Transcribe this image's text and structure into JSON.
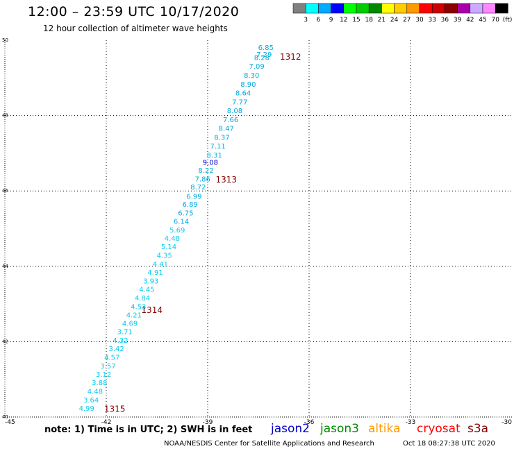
{
  "header": {
    "title": "12:00 – 23:59 UTC 10/17/2020",
    "subtitle": "12 hour collection of altimeter wave heights"
  },
  "legend": {
    "labels": [
      "3",
      "6",
      "9",
      "12",
      "15",
      "18",
      "21",
      "24",
      "27",
      "30",
      "33",
      "36",
      "39",
      "42",
      "45",
      "70"
    ],
    "unit": "(ft)",
    "colors": [
      "#808080",
      "#00ffff",
      "#00aaff",
      "#0000ff",
      "#00ff00",
      "#00cc00",
      "#008800",
      "#ffff00",
      "#ffcc00",
      "#ff9900",
      "#ff0000",
      "#cc0000",
      "#880000",
      "#aa00aa",
      "#ccaaff",
      "#ff88ff",
      "#000000"
    ]
  },
  "footer": {
    "note": "note: 1) Time is in UTC; 2) SWH is in feet",
    "missions": [
      {
        "name": "jason2",
        "color": "#0000cc"
      },
      {
        "name": "jason3",
        "color": "#008800"
      },
      {
        "name": "altika",
        "color": "#ff9900"
      },
      {
        "name": "cryosat",
        "color": "#ff0000"
      },
      {
        "name": "s3a",
        "color": "#880000"
      }
    ],
    "credit": "NOAA/NESDIS Center for Satellite Applications and Research",
    "timestamp": "Oct 18 08:27:38 UTC 2020"
  },
  "chart_data": {
    "type": "scatter",
    "xlim": [
      -45,
      -30
    ],
    "ylim": [
      40,
      50
    ],
    "x_ticks": [
      {
        "value": -45,
        "label": "-45"
      },
      {
        "value": -42,
        "label": "-42"
      },
      {
        "value": -39,
        "label": "-39"
      },
      {
        "value": -36,
        "label": "-36"
      },
      {
        "value": -33,
        "label": "-33"
      },
      {
        "value": -30,
        "label": "-30"
      }
    ],
    "y_ticks": [
      {
        "value": 40,
        "label": "40"
      },
      {
        "value": 42,
        "label": "42"
      },
      {
        "value": 44,
        "label": "44"
      },
      {
        "value": 46,
        "label": "46"
      },
      {
        "value": 48,
        "label": "48"
      },
      {
        "value": 50,
        "label": "50"
      }
    ],
    "grid": true,
    "points": [
      {
        "lon": -37.28,
        "lat": 49.82,
        "swh": "6.85",
        "color": "#00aadd"
      },
      {
        "lon": -37.33,
        "lat": 49.63,
        "swh": "7.29",
        "color": "#00aadd"
      },
      {
        "lon": -37.4,
        "lat": 49.55,
        "swh": "8.28",
        "color": "#00aadd"
      },
      {
        "lon": -37.55,
        "lat": 49.32,
        "swh": "7.09",
        "color": "#00aadd"
      },
      {
        "lon": -37.7,
        "lat": 49.08,
        "swh": "8.30",
        "color": "#00aadd"
      },
      {
        "lon": -37.8,
        "lat": 48.84,
        "swh": "8.90",
        "color": "#00aadd"
      },
      {
        "lon": -37.95,
        "lat": 48.61,
        "swh": "8.64",
        "color": "#00aadd"
      },
      {
        "lon": -38.05,
        "lat": 48.37,
        "swh": "7.77",
        "color": "#00aadd"
      },
      {
        "lon": -38.2,
        "lat": 48.14,
        "swh": "8.08",
        "color": "#00aadd"
      },
      {
        "lon": -38.32,
        "lat": 47.9,
        "swh": "7.66",
        "color": "#00aadd"
      },
      {
        "lon": -38.45,
        "lat": 47.67,
        "swh": "8.47",
        "color": "#00aadd"
      },
      {
        "lon": -38.58,
        "lat": 47.43,
        "swh": "8.37",
        "color": "#00aadd"
      },
      {
        "lon": -38.7,
        "lat": 47.2,
        "swh": "7.11",
        "color": "#00aadd"
      },
      {
        "lon": -38.8,
        "lat": 46.96,
        "swh": "8.31",
        "color": "#00aadd"
      },
      {
        "lon": -38.92,
        "lat": 46.77,
        "swh": "9.08",
        "color": "#0000cc"
      },
      {
        "lon": -39.05,
        "lat": 46.56,
        "swh": "8.22",
        "color": "#00aadd"
      },
      {
        "lon": -39.15,
        "lat": 46.33,
        "swh": "7.86",
        "color": "#00aadd"
      },
      {
        "lon": -39.28,
        "lat": 46.11,
        "swh": "8.72",
        "color": "#00aadd"
      },
      {
        "lon": -39.4,
        "lat": 45.87,
        "swh": "6.99",
        "color": "#00aadd"
      },
      {
        "lon": -39.52,
        "lat": 45.65,
        "swh": "6.89",
        "color": "#00aadd"
      },
      {
        "lon": -39.65,
        "lat": 45.42,
        "swh": "6.75",
        "color": "#00aadd"
      },
      {
        "lon": -39.78,
        "lat": 45.2,
        "swh": "6.14",
        "color": "#00aadd"
      },
      {
        "lon": -39.9,
        "lat": 44.97,
        "swh": "5.69",
        "color": "#00ccee"
      },
      {
        "lon": -40.05,
        "lat": 44.75,
        "swh": "4.48",
        "color": "#00ccee"
      },
      {
        "lon": -40.15,
        "lat": 44.53,
        "swh": "5.14",
        "color": "#00ccee"
      },
      {
        "lon": -40.28,
        "lat": 44.3,
        "swh": "4.35",
        "color": "#00ccee"
      },
      {
        "lon": -40.4,
        "lat": 44.07,
        "swh": "4.41",
        "color": "#00ccee"
      },
      {
        "lon": -40.55,
        "lat": 43.85,
        "swh": "4.91",
        "color": "#00ccee"
      },
      {
        "lon": -40.68,
        "lat": 43.62,
        "swh": "3.93",
        "color": "#00ccee"
      },
      {
        "lon": -40.8,
        "lat": 43.4,
        "swh": "4.45",
        "color": "#00ccee"
      },
      {
        "lon": -40.93,
        "lat": 43.17,
        "swh": "4.84",
        "color": "#00ccee"
      },
      {
        "lon": -41.05,
        "lat": 42.94,
        "swh": "4.53",
        "color": "#00ccee"
      },
      {
        "lon": -41.18,
        "lat": 42.72,
        "swh": "4.21",
        "color": "#00ccee"
      },
      {
        "lon": -41.3,
        "lat": 42.5,
        "swh": "4.69",
        "color": "#00ccee"
      },
      {
        "lon": -41.45,
        "lat": 42.27,
        "swh": "3.71",
        "color": "#00ccee"
      },
      {
        "lon": -41.58,
        "lat": 42.04,
        "swh": "4.32",
        "color": "#00ccee"
      },
      {
        "lon": -41.7,
        "lat": 41.82,
        "swh": "3.42",
        "color": "#00ccee"
      },
      {
        "lon": -41.83,
        "lat": 41.59,
        "swh": "4.57",
        "color": "#00ccee"
      },
      {
        "lon": -41.95,
        "lat": 41.36,
        "swh": "3.57",
        "color": "#00ccee"
      },
      {
        "lon": -42.08,
        "lat": 41.14,
        "swh": "3.12",
        "color": "#00ccee"
      },
      {
        "lon": -42.2,
        "lat": 40.92,
        "swh": "3.88",
        "color": "#00ccee"
      },
      {
        "lon": -42.33,
        "lat": 40.69,
        "swh": "4.48",
        "color": "#00ccee"
      },
      {
        "lon": -42.45,
        "lat": 40.46,
        "swh": "3.64",
        "color": "#00ccee"
      },
      {
        "lon": -42.58,
        "lat": 40.24,
        "swh": "4.99",
        "color": "#00ccee"
      }
    ],
    "pass_labels": [
      {
        "lon": -36.55,
        "lat": 49.58,
        "label": "1312"
      },
      {
        "lon": -38.45,
        "lat": 46.32,
        "label": "1313"
      },
      {
        "lon": -40.65,
        "lat": 42.85,
        "label": "1314"
      },
      {
        "lon": -41.75,
        "lat": 40.23,
        "label": "1315"
      }
    ],
    "pass_label_color": "#880000"
  }
}
